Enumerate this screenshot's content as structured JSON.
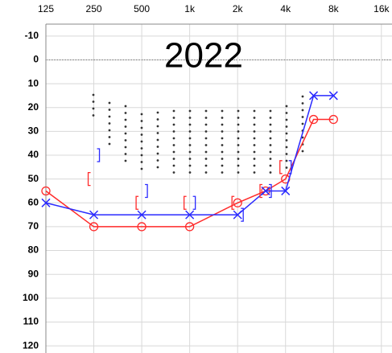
{
  "chart_data": {
    "type": "audiogram",
    "title": "2022",
    "x": [
      125,
      250,
      500,
      1000,
      2000,
      3000,
      4000,
      6000,
      8000
    ],
    "xlim": [
      125,
      18650
    ],
    "log_x": true,
    "xticks": [
      125,
      250,
      500,
      {
        "value": 1000,
        "label": "1k"
      },
      {
        "value": 2000,
        "label": "2k"
      },
      {
        "value": 4000,
        "label": "4k"
      },
      {
        "value": 8000,
        "label": "8k"
      },
      {
        "value": 16000,
        "label": "16k"
      }
    ],
    "ylim": [
      -15,
      123
    ],
    "invert_y": true,
    "yticks": [
      -10,
      0,
      10,
      20,
      30,
      40,
      50,
      60,
      70,
      80,
      90,
      100,
      110,
      120
    ],
    "grid": true,
    "series": [
      {
        "marker": "circle",
        "color": "#ff2a2a",
        "values": [
          55,
          70,
          70,
          70,
          60,
          55,
          50,
          25,
          25
        ]
      },
      {
        "marker": "cross",
        "color": "#2a2aff",
        "values": [
          60,
          65,
          65,
          65,
          65,
          55,
          55,
          15,
          15
        ]
      },
      {
        "marker": "bracket-left",
        "color": "#ff2a2a",
        "values": [
          null,
          50,
          60,
          60,
          60,
          55,
          45,
          null,
          null
        ]
      },
      {
        "marker": "bracket-right",
        "color": "#2a2aff",
        "values": [
          null,
          40,
          55,
          60,
          65,
          55,
          45,
          null,
          null
        ]
      }
    ]
  }
}
